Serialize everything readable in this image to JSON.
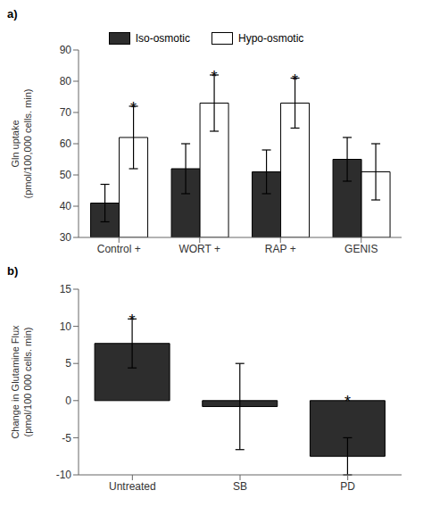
{
  "chart_data": [
    {
      "type": "bar",
      "title": "a)",
      "categories": [
        "Control +",
        "WORT +",
        "RAP +",
        "GENIS"
      ],
      "series": [
        {
          "name": "Iso-osmotic",
          "color": "#2d2d2d",
          "values": [
            41,
            52,
            51,
            55
          ],
          "errors": [
            6,
            8,
            7,
            7
          ]
        },
        {
          "name": "Hypo-osmotic",
          "color": "white",
          "values": [
            62,
            73,
            73,
            51
          ],
          "errors": [
            10,
            9,
            8,
            9
          ]
        }
      ],
      "annotations": [
        {
          "text": "*",
          "category": "Control +",
          "series": "Hypo-osmotic"
        },
        {
          "text": "*",
          "category": "WORT +",
          "series": "Hypo-osmotic"
        },
        {
          "text": "*",
          "category": "RAP +",
          "series": "Hypo-osmotic"
        }
      ],
      "y_label": "Gln uptake\n(pmol/100,000 cells. min)",
      "ylim": [
        30,
        90
      ],
      "yticks": [
        30,
        40,
        50,
        60,
        70,
        80,
        90
      ],
      "legend": "top",
      "grid": false
    },
    {
      "type": "bar",
      "title": "b)",
      "categories": [
        "Untreated",
        "SB",
        "PD"
      ],
      "values": [
        7.7,
        -0.8,
        -7.5
      ],
      "errors": [
        3.3,
        5.8,
        2.5
      ],
      "color": "#2d2d2d",
      "annotations": [
        {
          "text": "*",
          "category": "Untreated"
        },
        {
          "text": "*",
          "category": "PD"
        }
      ],
      "y_label": "Change in Glutamine Flux\n(pmol/100 000 cells. min)",
      "ylim": [
        -10,
        15
      ],
      "yticks": [
        -10,
        -5,
        0,
        5,
        10,
        15
      ],
      "grid": false
    }
  ]
}
